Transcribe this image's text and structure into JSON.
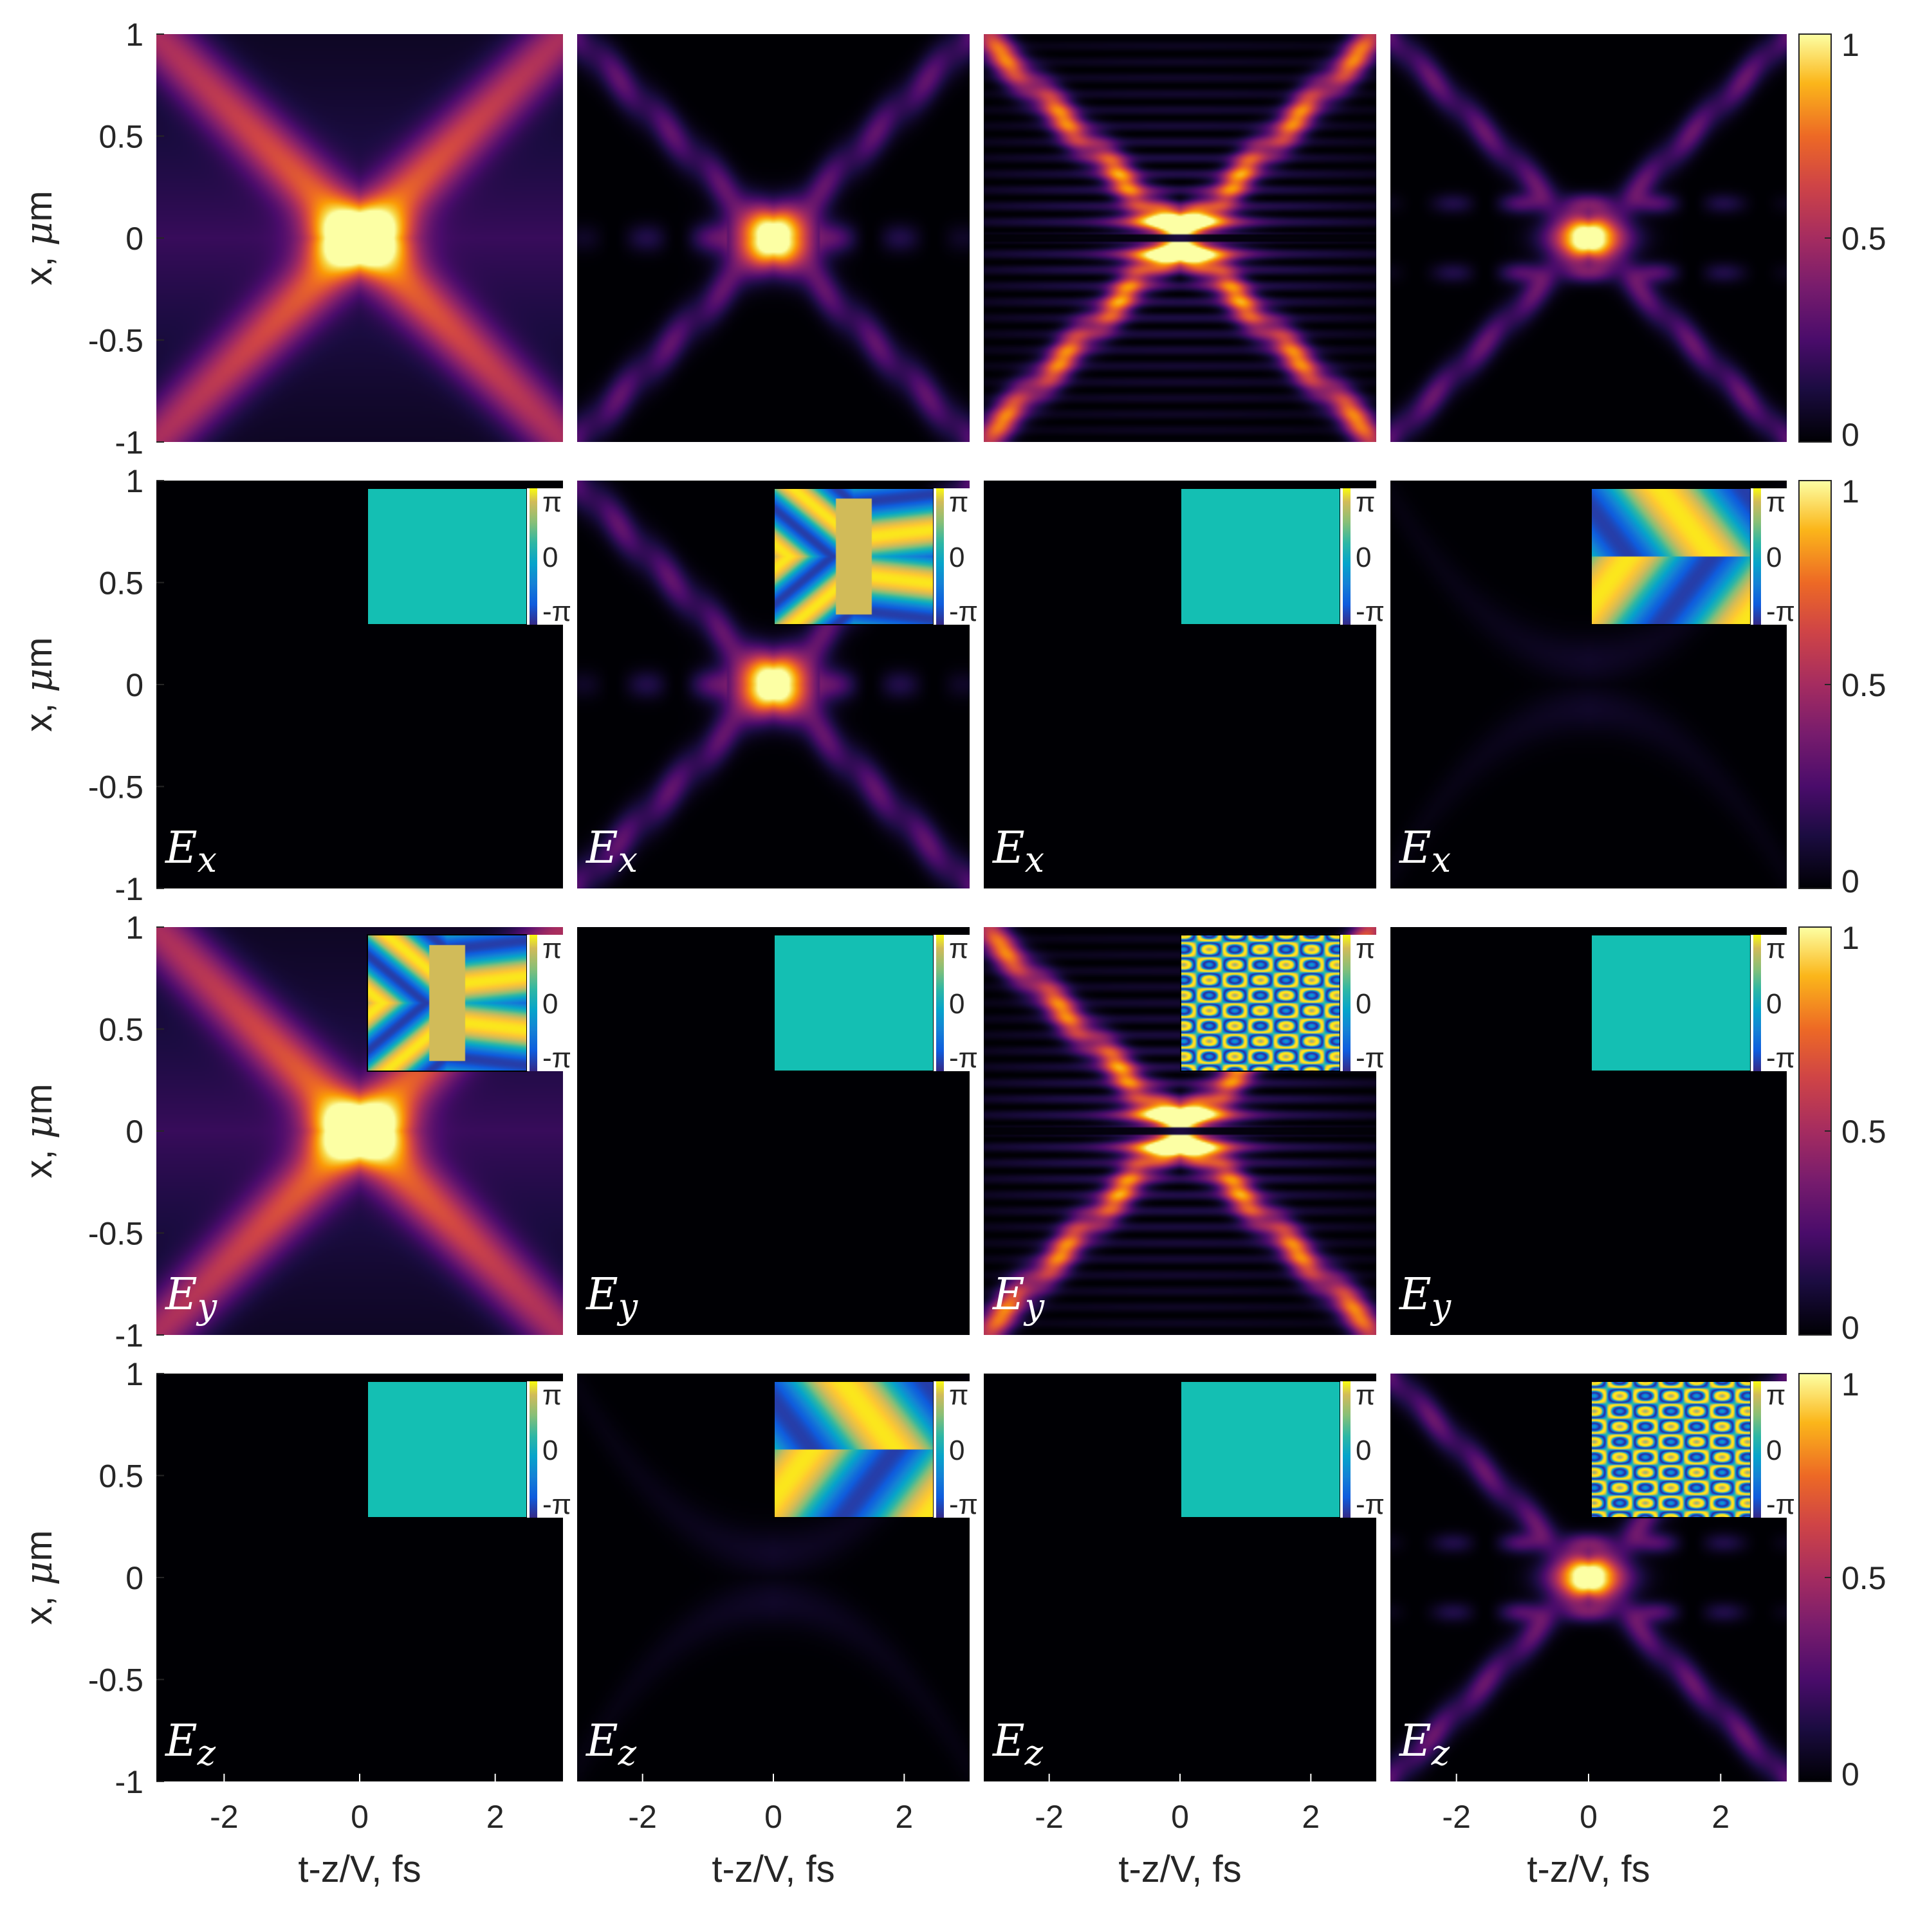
{
  "chart_data": {
    "type": "heatmap",
    "layout": "4x4 grid of intensity maps with one colorbar per row; phase insets (-π..π) in rows 2-4",
    "xlabel": "t-z/V, fs",
    "ylabel": "x, μm",
    "ylabel_parts": [
      "x, ",
      "μ",
      "m"
    ],
    "x_ticks": [
      "-2",
      "0",
      "2"
    ],
    "x_tick_values": [
      -2,
      0,
      2
    ],
    "y_ticks": [
      "1",
      "0.5",
      "0",
      "-0.5",
      "-1"
    ],
    "y_tick_values": [
      1,
      0.5,
      0,
      -0.5,
      -1
    ],
    "xlim": [
      -3,
      3
    ],
    "ylim": [
      -1,
      1
    ],
    "colorbar": {
      "ticks": [
        "0",
        "0.5",
        "1"
      ],
      "tick_values": [
        0,
        0.5,
        1
      ],
      "range": [
        0,
        1
      ],
      "colormap": "inferno-like"
    },
    "phase_colorbar": {
      "ticks": [
        "π",
        "0",
        "-π"
      ],
      "range_labels": [
        "-π",
        "π"
      ],
      "colormap": "parula-like"
    },
    "rows": [
      {
        "component": "",
        "component_parts": [
          "",
          ""
        ],
        "panels": [
          {
            "pattern": "xcross",
            "amplitude": 1,
            "phase": "none"
          },
          {
            "pattern": "x_rings",
            "amplitude": 1,
            "phase": "none"
          },
          {
            "pattern": "x_fringes_split",
            "amplitude": 1,
            "phase": "none"
          },
          {
            "pattern": "x_sidebands",
            "amplitude": 1,
            "phase": "none"
          }
        ]
      },
      {
        "component": "Ex",
        "component_parts": [
          "E",
          "x"
        ],
        "panels": [
          {
            "pattern": "none",
            "amplitude": 0,
            "phase": "uniform"
          },
          {
            "pattern": "x_rings",
            "amplitude": 1,
            "phase": "xcross"
          },
          {
            "pattern": "none",
            "amplitude": 0,
            "phase": "uniform"
          },
          {
            "pattern": "faint_arcs",
            "amplitude": 0.12,
            "phase": "split"
          }
        ]
      },
      {
        "component": "Ey",
        "component_parts": [
          "E",
          "y"
        ],
        "panels": [
          {
            "pattern": "xcross",
            "amplitude": 1,
            "phase": "xcross"
          },
          {
            "pattern": "none",
            "amplitude": 0,
            "phase": "uniform"
          },
          {
            "pattern": "x_fringes_split",
            "amplitude": 1,
            "phase": "fringes"
          },
          {
            "pattern": "none",
            "amplitude": 0,
            "phase": "uniform"
          }
        ]
      },
      {
        "component": "Ez",
        "component_parts": [
          "E",
          "z"
        ],
        "panels": [
          {
            "pattern": "none",
            "amplitude": 0,
            "phase": "uniform"
          },
          {
            "pattern": "faint_arcs",
            "amplitude": 0.12,
            "phase": "split"
          },
          {
            "pattern": "none",
            "amplitude": 0,
            "phase": "uniform"
          },
          {
            "pattern": "x_sidebands",
            "amplitude": 1,
            "phase": "fringes"
          }
        ]
      }
    ],
    "colors": {
      "uniform_phase": "#14bfb3",
      "frame": "#262626",
      "background": "#ffffff"
    }
  }
}
